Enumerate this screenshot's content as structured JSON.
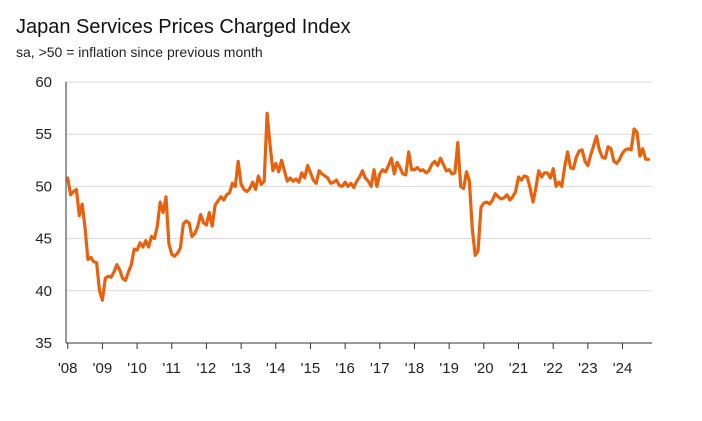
{
  "chart_data": {
    "type": "line",
    "title": "Japan Services Prices Charged Index",
    "subtitle": "sa, >50 = inflation since previous month",
    "xlabel": "",
    "ylabel": "",
    "ylim": [
      35,
      60
    ],
    "yticks": [
      35,
      40,
      45,
      50,
      55,
      60
    ],
    "xlim": [
      2007.95,
      2024.85
    ],
    "xticks": [
      {
        "value": 2008,
        "label": "'08"
      },
      {
        "value": 2009,
        "label": "'09"
      },
      {
        "value": 2010,
        "label": "'10"
      },
      {
        "value": 2011,
        "label": "'11"
      },
      {
        "value": 2012,
        "label": "'12"
      },
      {
        "value": 2013,
        "label": "'13"
      },
      {
        "value": 2014,
        "label": "'14"
      },
      {
        "value": 2015,
        "label": "'15"
      },
      {
        "value": 2016,
        "label": "'16"
      },
      {
        "value": 2017,
        "label": "'17"
      },
      {
        "value": 2018,
        "label": "'18"
      },
      {
        "value": 2019,
        "label": "'19"
      },
      {
        "value": 2020,
        "label": "'20"
      },
      {
        "value": 2021,
        "label": "'21"
      },
      {
        "value": 2022,
        "label": "'22"
      },
      {
        "value": 2023,
        "label": "'23"
      },
      {
        "value": 2024,
        "label": "'24"
      }
    ],
    "grid": true,
    "legend": "none",
    "line_color": "#e8620e",
    "series": [
      {
        "x": [
          2008.0,
          2008.083,
          2008.167,
          2008.25,
          2008.333,
          2008.417,
          2008.5,
          2008.583,
          2008.667,
          2008.75,
          2008.833,
          2008.917,
          2009.0,
          2009.083,
          2009.167,
          2009.25,
          2009.333,
          2009.417,
          2009.5,
          2009.583,
          2009.667,
          2009.75,
          2009.833,
          2009.917,
          2010.0,
          2010.083,
          2010.167,
          2010.25,
          2010.333,
          2010.417,
          2010.5,
          2010.583,
          2010.667,
          2010.75,
          2010.833,
          2010.917,
          2011.0,
          2011.083,
          2011.167,
          2011.25,
          2011.333,
          2011.417,
          2011.5,
          2011.583,
          2011.667,
          2011.75,
          2011.833,
          2011.917,
          2012.0,
          2012.083,
          2012.167,
          2012.25,
          2012.333,
          2012.417,
          2012.5,
          2012.583,
          2012.667,
          2012.75,
          2012.833,
          2012.917,
          2013.0,
          2013.083,
          2013.167,
          2013.25,
          2013.333,
          2013.417,
          2013.5,
          2013.583,
          2013.667,
          2013.75,
          2013.833,
          2013.917,
          2014.0,
          2014.083,
          2014.167,
          2014.25,
          2014.333,
          2014.417,
          2014.5,
          2014.583,
          2014.667,
          2014.75,
          2014.833,
          2014.917,
          2015.0,
          2015.083,
          2015.167,
          2015.25,
          2015.333,
          2015.417,
          2015.5,
          2015.583,
          2015.667,
          2015.75,
          2015.833,
          2015.917,
          2016.0,
          2016.083,
          2016.167,
          2016.25,
          2016.333,
          2016.417,
          2016.5,
          2016.583,
          2016.667,
          2016.75,
          2016.833,
          2016.917,
          2017.0,
          2017.083,
          2017.167,
          2017.25,
          2017.333,
          2017.417,
          2017.5,
          2017.583,
          2017.667,
          2017.75,
          2017.833,
          2017.917,
          2018.0,
          2018.083,
          2018.167,
          2018.25,
          2018.333,
          2018.417,
          2018.5,
          2018.583,
          2018.667,
          2018.75,
          2018.833,
          2018.917,
          2019.0,
          2019.083,
          2019.167,
          2019.25,
          2019.333,
          2019.417,
          2019.5,
          2019.583,
          2019.667,
          2019.75,
          2019.833,
          2019.917,
          2020.0,
          2020.083,
          2020.167,
          2020.25,
          2020.333,
          2020.417,
          2020.5,
          2020.583,
          2020.667,
          2020.75,
          2020.833,
          2020.917,
          2021.0,
          2021.083,
          2021.167,
          2021.25,
          2021.333,
          2021.417,
          2021.5,
          2021.583,
          2021.667,
          2021.75,
          2021.833,
          2021.917,
          2022.0,
          2022.083,
          2022.167,
          2022.25,
          2022.333,
          2022.417,
          2022.5,
          2022.583,
          2022.667,
          2022.75,
          2022.833,
          2022.917,
          2023.0,
          2023.083,
          2023.167,
          2023.25,
          2023.333,
          2023.417,
          2023.5,
          2023.583,
          2023.667,
          2023.75,
          2023.833,
          2023.917,
          2024.0,
          2024.083,
          2024.167,
          2024.25,
          2024.333,
          2024.417,
          2024.5,
          2024.583,
          2024.667,
          2024.75
        ],
        "values": [
          50.8,
          49.2,
          49.5,
          49.7,
          47.2,
          48.3,
          46.0,
          43.0,
          43.2,
          42.8,
          42.7,
          40.0,
          39.1,
          41.2,
          41.4,
          41.3,
          41.8,
          42.5,
          42.0,
          41.2,
          41.0,
          41.8,
          42.5,
          44.0,
          43.9,
          44.6,
          44.2,
          44.8,
          44.2,
          45.2,
          45.0,
          46.2,
          48.5,
          47.5,
          49.0,
          44.5,
          43.5,
          43.3,
          43.6,
          44.1,
          46.4,
          46.7,
          46.5,
          45.2,
          45.5,
          46.2,
          47.3,
          46.5,
          46.3,
          47.5,
          46.2,
          48.2,
          48.6,
          49.0,
          48.7,
          49.2,
          49.4,
          50.3,
          50.0,
          52.4,
          50.2,
          49.7,
          49.5,
          49.8,
          50.4,
          49.7,
          51.0,
          50.2,
          50.5,
          57.0,
          54.0,
          51.5,
          52.2,
          51.4,
          52.5,
          51.5,
          50.5,
          50.8,
          50.5,
          50.7,
          50.4,
          51.3,
          50.8,
          52.0,
          51.3,
          50.6,
          50.3,
          51.5,
          51.2,
          51.0,
          50.8,
          50.3,
          50.4,
          50.6,
          50.1,
          50.0,
          50.4,
          50.0,
          50.3,
          49.9,
          50.5,
          50.9,
          51.5,
          50.8,
          50.5,
          50.0,
          51.6,
          50.0,
          51.2,
          51.6,
          51.4,
          52.0,
          52.7,
          51.2,
          52.3,
          51.8,
          51.2,
          51.1,
          53.3,
          51.6,
          51.6,
          51.8,
          51.5,
          51.6,
          51.3,
          51.5,
          52.1,
          52.4,
          52.0,
          52.7,
          52.1,
          51.5,
          51.6,
          51.2,
          51.3,
          54.2,
          50.0,
          49.8,
          51.4,
          50.5,
          45.9,
          43.4,
          43.8,
          48.0,
          48.4,
          48.5,
          48.3,
          48.7,
          49.3,
          49.0,
          48.8,
          48.9,
          49.2,
          48.7,
          49.0,
          49.5,
          50.9,
          50.6,
          51.0,
          50.9,
          49.9,
          48.5,
          49.8,
          51.5,
          50.9,
          51.3,
          51.3,
          50.8,
          51.7,
          50.0,
          50.4,
          50.0,
          51.9,
          53.3,
          51.8,
          51.7,
          52.8,
          53.4,
          53.5,
          52.4,
          52.0,
          53.0,
          53.9,
          54.8,
          53.5,
          52.8,
          52.7,
          53.8,
          53.6,
          52.4,
          52.2,
          52.6,
          53.2,
          53.5,
          53.6,
          53.5,
          55.5,
          55.2,
          52.9,
          53.6,
          52.6,
          52.6
        ]
      }
    ]
  }
}
